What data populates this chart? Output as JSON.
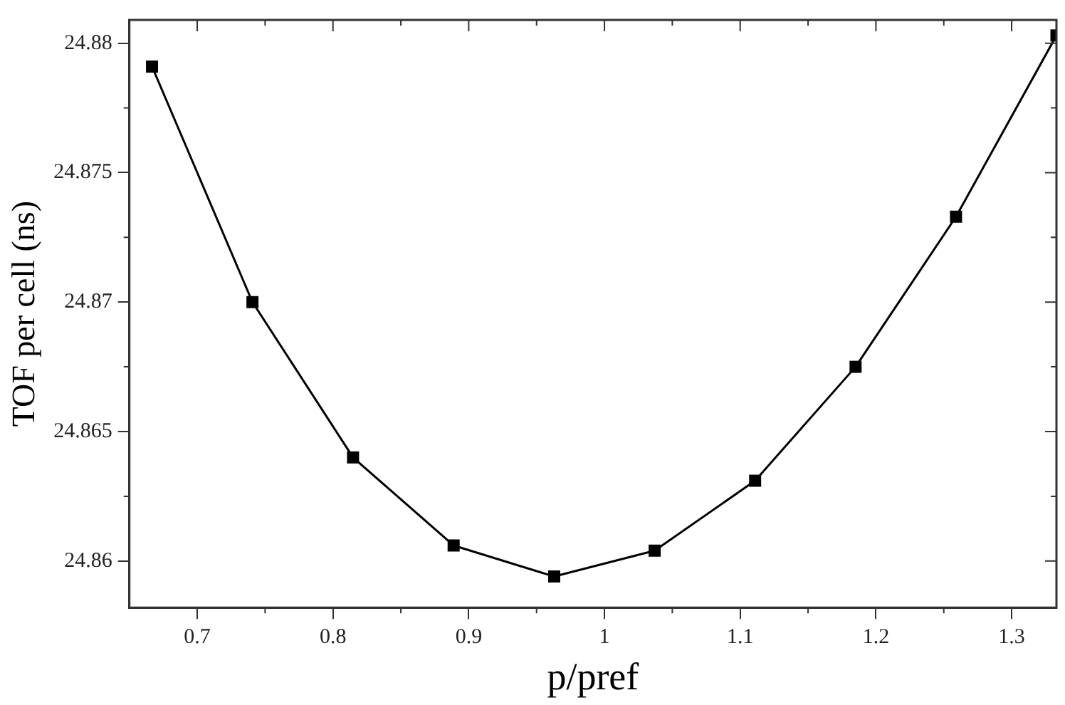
{
  "chart_data": {
    "type": "line",
    "xlabel": "p/pref",
    "ylabel": "TOF per cell (ns)",
    "x": [
      0.6667,
      0.7407,
      0.8148,
      0.8889,
      0.963,
      1.037,
      1.111,
      1.185,
      1.259,
      1.333
    ],
    "series": [
      {
        "color": "#000000",
        "values": [
          24.8791,
          24.87,
          24.864,
          24.8606,
          24.8594,
          24.8604,
          24.8631,
          24.8675,
          24.8733,
          24.8803
        ]
      }
    ],
    "xlim": [
      0.65,
      1.333
    ],
    "xticks": [
      0.7,
      0.8,
      0.9,
      1,
      1.1,
      1.2,
      1.3
    ],
    "ylim": [
      24.8582,
      24.8809
    ],
    "yticks": [
      24.86,
      24.865,
      24.87,
      24.875,
      24.88
    ],
    "grid": false,
    "legend": false,
    "marker": "square",
    "line_style": "solid"
  }
}
